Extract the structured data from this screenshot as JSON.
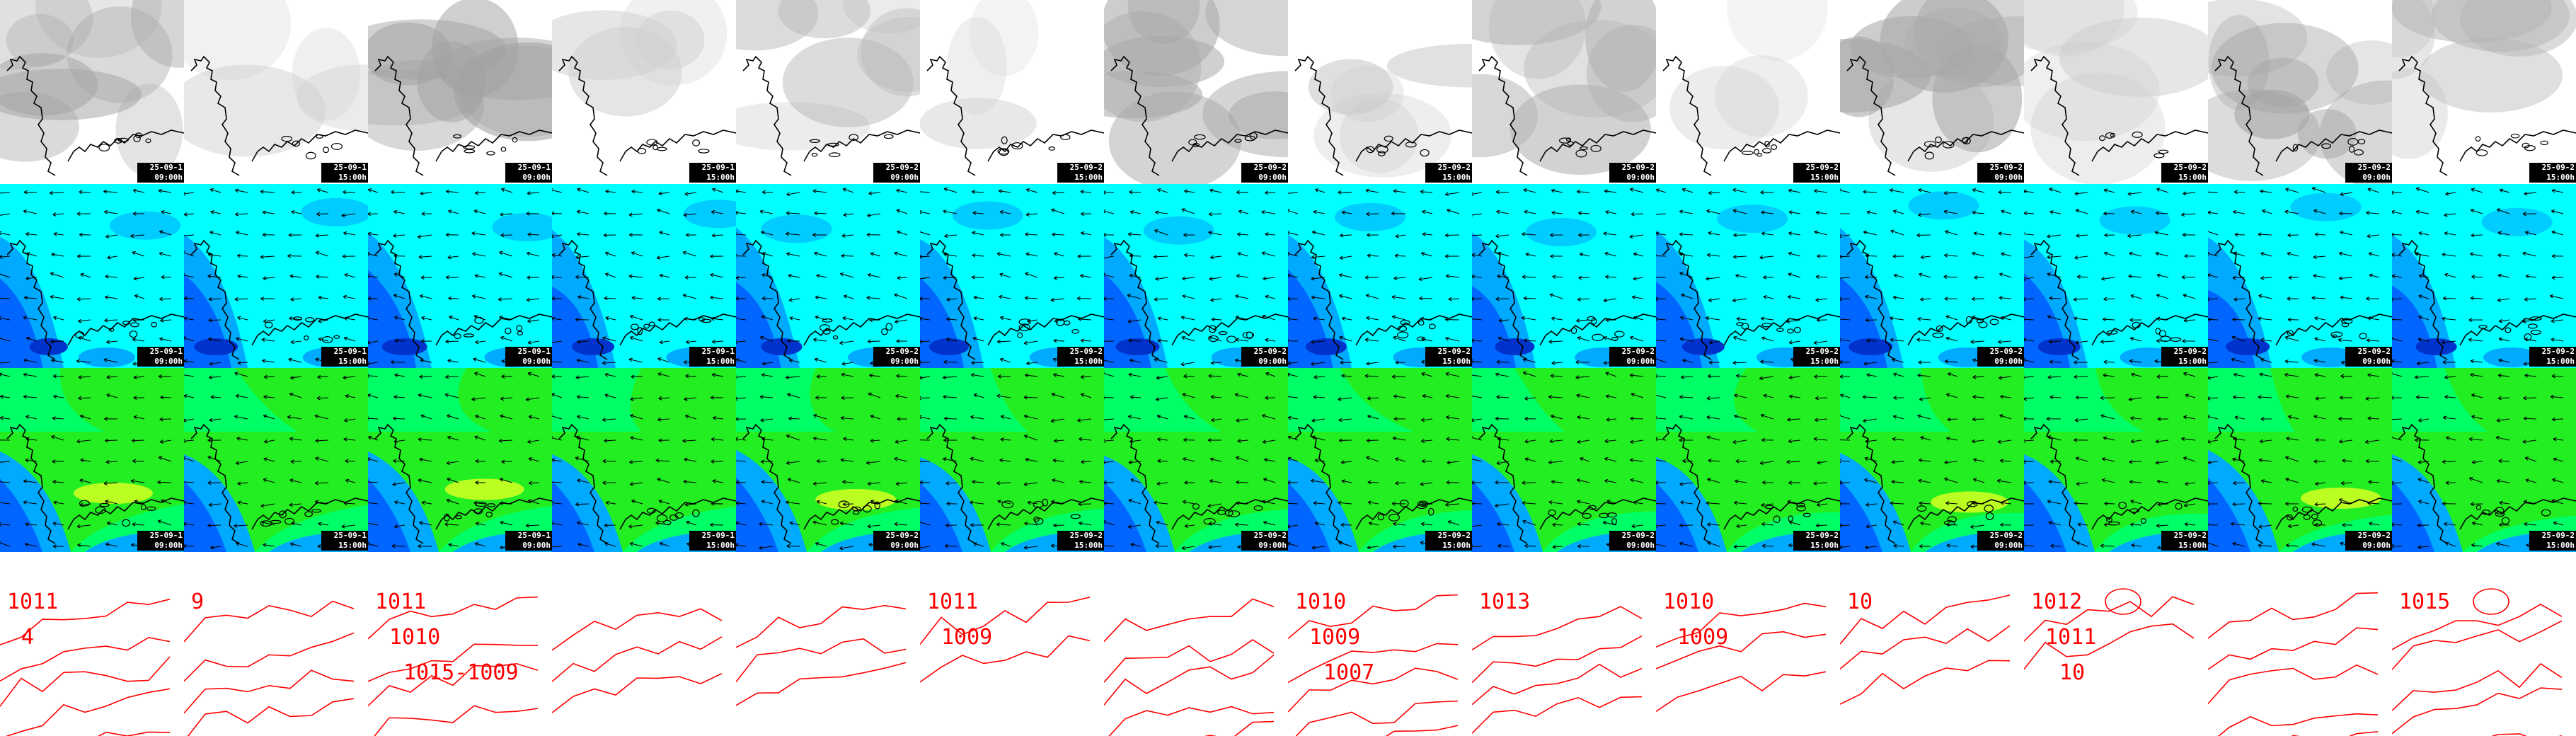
{
  "panel": {
    "columns": 14,
    "rows": [
      "cloud-cover",
      "wind-speed-low",
      "wind-speed-high",
      "pressure"
    ]
  },
  "frames": [
    {
      "date": "25-09-1",
      "time": "09:00h"
    },
    {
      "date": "25-09-1",
      "time": "15:00h"
    },
    {
      "date": "25-09-1",
      "time": "09:00h"
    },
    {
      "date": "25-09-1",
      "time": "15:00h"
    },
    {
      "date": "25-09-2",
      "time": "09:00h"
    },
    {
      "date": "25-09-2",
      "time": "15:00h"
    },
    {
      "date": "25-09-2",
      "time": "09:00h"
    },
    {
      "date": "25-09-2",
      "time": "15:00h"
    },
    {
      "date": "25-09-2",
      "time": "09:00h"
    },
    {
      "date": "25-09-2",
      "time": "15:00h"
    },
    {
      "date": "25-09-2",
      "time": "09:00h"
    },
    {
      "date": "25-09-2",
      "time": "15:00h"
    },
    {
      "date": "25-09-2",
      "time": "09:00h"
    },
    {
      "date": "25-09-2",
      "time": "15:00h"
    }
  ],
  "cloud_row": {
    "cover": [
      0.75,
      0.1,
      0.8,
      0.1,
      0.45,
      0.05,
      0.7,
      0.2,
      0.55,
      0.05,
      0.7,
      0.2,
      0.8,
      0.5
    ]
  },
  "wind_low_row": {
    "level": [
      0.35,
      0.55,
      0.6,
      0.5,
      0.45,
      0.4,
      0.55,
      0.45,
      0.4,
      0.5,
      0.55,
      0.5,
      0.55,
      0.45
    ]
  },
  "wind_high_row": {
    "level": [
      0.8,
      0.7,
      0.8,
      0.7,
      0.85,
      0.6,
      0.65,
      0.6,
      0.7,
      0.6,
      0.75,
      0.7,
      0.85,
      0.7
    ]
  },
  "pressure_row": {
    "labels": [
      [
        "1011",
        "4"
      ],
      [
        "9"
      ],
      [
        "1011",
        "1010",
        "1015-1009"
      ],
      [],
      [],
      [
        "1011",
        "1009"
      ],
      [],
      [
        "1010",
        "1009",
        "1007"
      ],
      [
        "1013"
      ],
      [
        "1010",
        "1009"
      ],
      [
        "10"
      ],
      [
        "1012",
        "1011",
        "10"
      ],
      [],
      [
        "1015"
      ]
    ]
  },
  "colors": {
    "cloud_light": "#ffffff",
    "cloud_dark": "#8e8e8e",
    "coast": "#000000",
    "wind_cyan": "#00ffff",
    "wind_mid": "#00aaff",
    "wind_blue": "#0066ff",
    "wind_deep": "#0033cc",
    "wind_green": "#00ff66",
    "wind_lime": "#22ee22",
    "wind_yellow": "#bbff22",
    "isobar": "#ff0000",
    "label_bg": "#000000",
    "label_fg": "#ffffff"
  }
}
